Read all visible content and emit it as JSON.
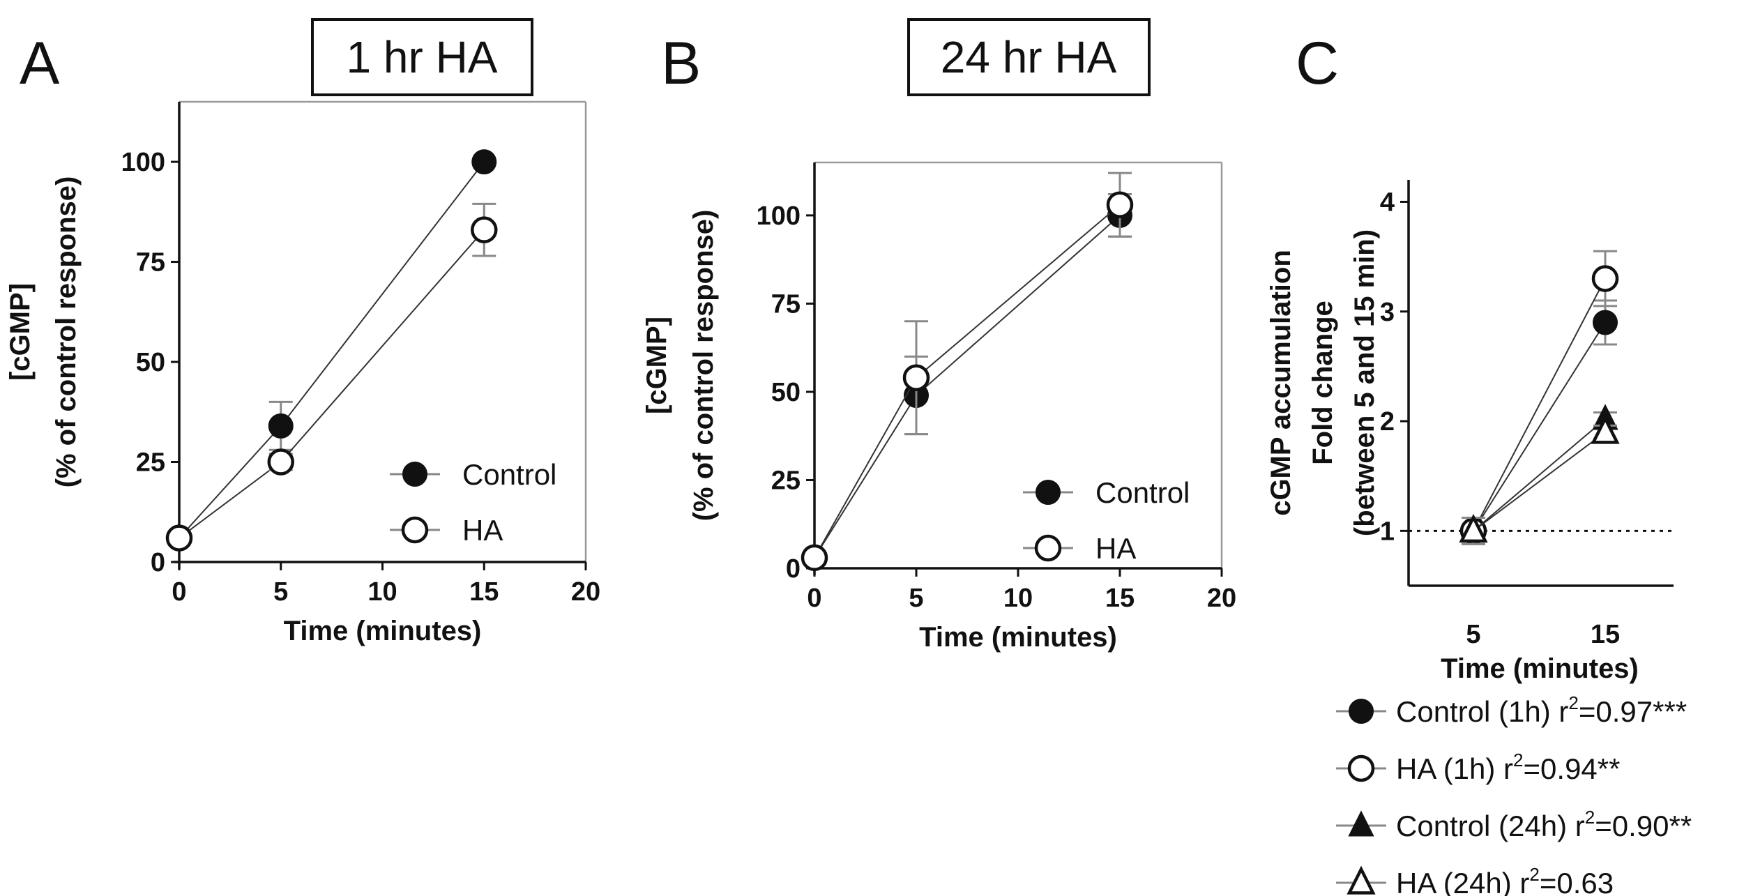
{
  "panels": {
    "A": {
      "letter": "A",
      "title": "1 hr HA"
    },
    "B": {
      "letter": "B",
      "title": "24 hr HA"
    },
    "C": {
      "letter": "C"
    }
  },
  "colors": {
    "ink": "#111111",
    "background": "#ffffff",
    "frame": "#999999",
    "errorbar": "#888888"
  },
  "chart_data": [
    {
      "id": "A",
      "type": "line",
      "title": "1 hr HA",
      "xlabel": "Time (minutes)",
      "ylabel_line1": "[cGMP]",
      "ylabel_line2": "(% of control response)",
      "xlim": [
        0,
        20
      ],
      "ylim": [
        0,
        115
      ],
      "xticks": [
        0,
        5,
        10,
        15,
        20
      ],
      "yticks": [
        0,
        25,
        50,
        75,
        100
      ],
      "legend_position": "bottom-right",
      "series": [
        {
          "name": "Control",
          "marker": "filled-circle",
          "x": [
            0,
            5,
            15
          ],
          "y": [
            6,
            34,
            100
          ],
          "err": [
            1,
            6,
            0
          ]
        },
        {
          "name": "HA",
          "marker": "open-circle",
          "x": [
            0,
            5,
            15
          ],
          "y": [
            6,
            25,
            83
          ],
          "err": [
            1,
            2,
            6.5
          ]
        }
      ]
    },
    {
      "id": "B",
      "type": "line",
      "title": "24 hr HA",
      "xlabel": "Time (minutes)",
      "ylabel_line1": "[cGMP]",
      "ylabel_line2": "(% of control response)",
      "xlim": [
        0,
        20
      ],
      "ylim": [
        0,
        115
      ],
      "xticks": [
        0,
        5,
        10,
        15,
        20
      ],
      "yticks": [
        0,
        25,
        50,
        75,
        100
      ],
      "legend_position": "bottom-right",
      "series": [
        {
          "name": "Control",
          "marker": "filled-circle",
          "x": [
            0,
            5,
            15
          ],
          "y": [
            3,
            49,
            100
          ],
          "err": [
            1,
            11,
            6
          ]
        },
        {
          "name": "HA",
          "marker": "open-circle",
          "x": [
            0,
            5,
            15
          ],
          "y": [
            3,
            54,
            103
          ],
          "err": [
            1,
            16,
            9
          ]
        }
      ]
    },
    {
      "id": "C",
      "type": "line",
      "xlabel": "Time (minutes)",
      "ylabel_line1": "cGMP accumulation",
      "ylabel_line2": "Fold change",
      "ylabel_line3": "(between 5 and 15 min)",
      "categories": [
        "5",
        "15"
      ],
      "ylim": [
        0.5,
        4.2
      ],
      "yticks": [
        1,
        2,
        3,
        4
      ],
      "reference_line": 1,
      "legend_position": "bottom",
      "series": [
        {
          "name": "Control (1h) r",
          "r2": "2",
          "stat": "=0.97***",
          "marker": "filled-circle",
          "values": [
            1.0,
            2.9
          ],
          "err": [
            0.12,
            0.2
          ]
        },
        {
          "name": "HA (1h) r",
          "r2": "2",
          "stat": "=0.94**",
          "marker": "open-circle",
          "values": [
            1.0,
            3.3
          ],
          "err": [
            0.12,
            0.25
          ]
        },
        {
          "name": "Control (24h) r",
          "r2": "2",
          "stat": "=0.90**",
          "marker": "filled-triangle",
          "values": [
            1.0,
            2.02
          ],
          "err": [
            0.12,
            0.06
          ]
        },
        {
          "name": "HA (24h) r",
          "r2": "2",
          "stat": "=0.63",
          "marker": "open-triangle",
          "values": [
            1.0,
            1.9
          ],
          "err": [
            0.12,
            0.06
          ]
        }
      ]
    }
  ]
}
